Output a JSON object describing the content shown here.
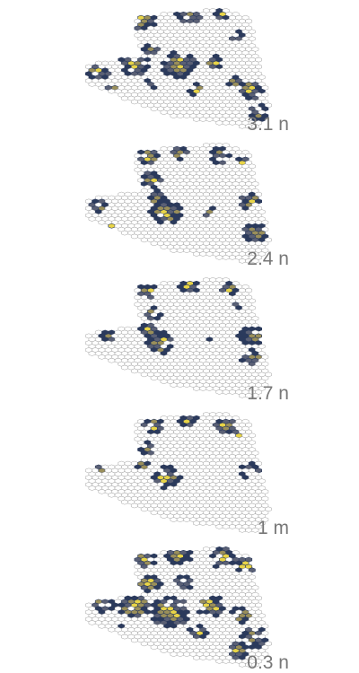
{
  "panels": [
    {
      "label": "3.1 n",
      "coverage": "high"
    },
    {
      "label": "2.4 n",
      "coverage": "medium"
    },
    {
      "label": "1.7 n",
      "coverage": "medium"
    },
    {
      "label": "1 m",
      "coverage": "low"
    },
    {
      "label": "0.3 n",
      "coverage": "high"
    }
  ],
  "colors": {
    "grid_stroke": "#9a9a9a",
    "navy": "#2b3a5c",
    "slate": "#5a6075",
    "olive": "#9a8f5a",
    "yellow": "#e8d447",
    "label": "#777777"
  }
}
